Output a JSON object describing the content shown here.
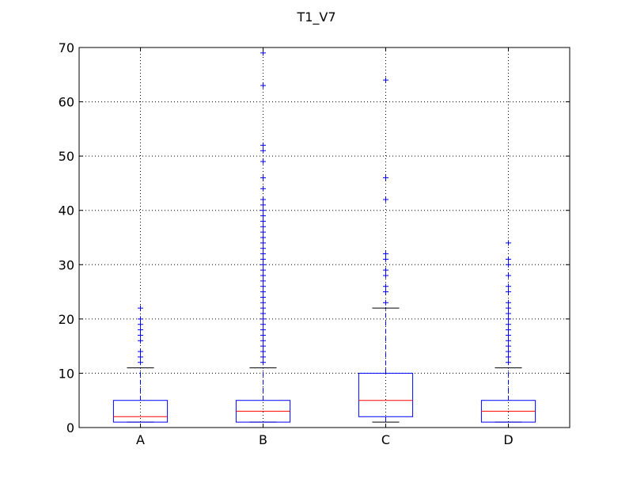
{
  "chart_data": {
    "type": "box",
    "title": "T1_V7",
    "xlabel": "",
    "ylabel": "",
    "ylim": [
      0,
      70
    ],
    "yticks": [
      0,
      10,
      20,
      30,
      40,
      50,
      60,
      70
    ],
    "grid": true,
    "categories": [
      "A",
      "B",
      "C",
      "D"
    ],
    "boxes": [
      {
        "label": "A",
        "whisker_low": 1,
        "q1": 1,
        "median": 2,
        "q3": 5,
        "whisker_high": 11,
        "outliers": [
          12,
          13,
          14,
          16,
          17,
          18,
          19,
          20,
          22
        ]
      },
      {
        "label": "B",
        "whisker_low": 1,
        "q1": 1,
        "median": 3,
        "q3": 5,
        "whisker_high": 11,
        "outliers": [
          12,
          13,
          14,
          15,
          16,
          17,
          18,
          19,
          20,
          21,
          22,
          23,
          24,
          25,
          26,
          27,
          28,
          29,
          30,
          31,
          32,
          33,
          34,
          35,
          36,
          37,
          38,
          39,
          40,
          41,
          42,
          44,
          46,
          49,
          51,
          52,
          63,
          69
        ]
      },
      {
        "label": "C",
        "whisker_low": 1,
        "q1": 2,
        "median": 5,
        "q3": 10,
        "whisker_high": 22,
        "outliers": [
          23,
          25,
          26,
          28,
          29,
          31,
          32,
          42,
          46,
          64
        ]
      },
      {
        "label": "D",
        "whisker_low": 1,
        "q1": 1,
        "median": 3,
        "q3": 5,
        "whisker_high": 11,
        "outliers": [
          12,
          13,
          14,
          15,
          16,
          17,
          18,
          19,
          20,
          21,
          22,
          23,
          25,
          26,
          28,
          30,
          31,
          34
        ]
      }
    ],
    "colors": {
      "box": "#0000ff",
      "median": "#ff0000",
      "whisker": "#0000ff",
      "cap": "#000000",
      "outlier": "#0000ff",
      "axes": "#000000",
      "grid": "#000000"
    }
  }
}
